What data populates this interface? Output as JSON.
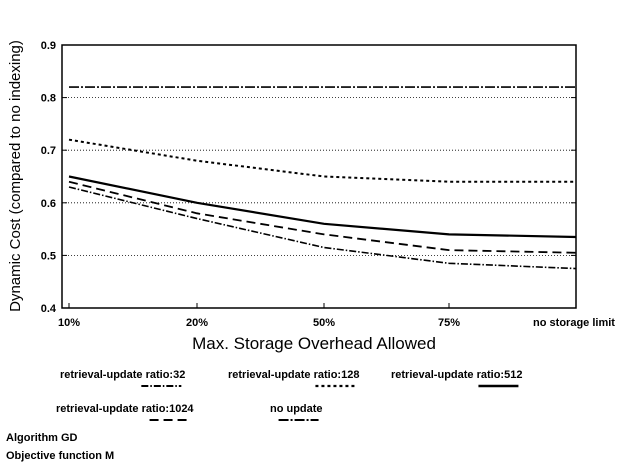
{
  "chart_data": {
    "type": "line",
    "title": "",
    "xlabel": "Max. Storage Overhead Allowed",
    "ylabel": "Dynamic Cost (compared to no indexing)",
    "categories": [
      "10%",
      "20%",
      "50%",
      "75%",
      "no storage limit"
    ],
    "ylim": [
      0.4,
      0.9
    ],
    "yticks": [
      "0.4",
      "0.5",
      "0.6",
      "0.7",
      "0.8",
      "0.9"
    ],
    "grid": "horizontal dotted",
    "legend_position": "bottom",
    "series": [
      {
        "name": "retrieval-update ratio:32",
        "values": [
          0.63,
          0.57,
          0.515,
          0.485,
          0.475
        ],
        "color": "#000000",
        "dash": "dashdot"
      },
      {
        "name": "retrieval-update ratio:128",
        "values": [
          0.72,
          0.68,
          0.65,
          0.64,
          0.64
        ],
        "color": "#000000",
        "dash": "dotted"
      },
      {
        "name": "retrieval-update ratio:512",
        "values": [
          0.65,
          0.6,
          0.56,
          0.54,
          0.535
        ],
        "color": "#000000",
        "dash": "solid"
      },
      {
        "name": "retrieval-update ratio:1024",
        "values": [
          0.64,
          0.58,
          0.54,
          0.51,
          0.505
        ],
        "color": "#000000",
        "dash": "dashed"
      },
      {
        "name": "no update",
        "values": [
          0.82,
          0.82,
          0.82,
          0.82,
          0.82
        ],
        "color": "#000000",
        "dash": "dashdot2"
      }
    ]
  },
  "footer": {
    "algorithm": "Algorithm GD",
    "objective": "Objective function M"
  }
}
